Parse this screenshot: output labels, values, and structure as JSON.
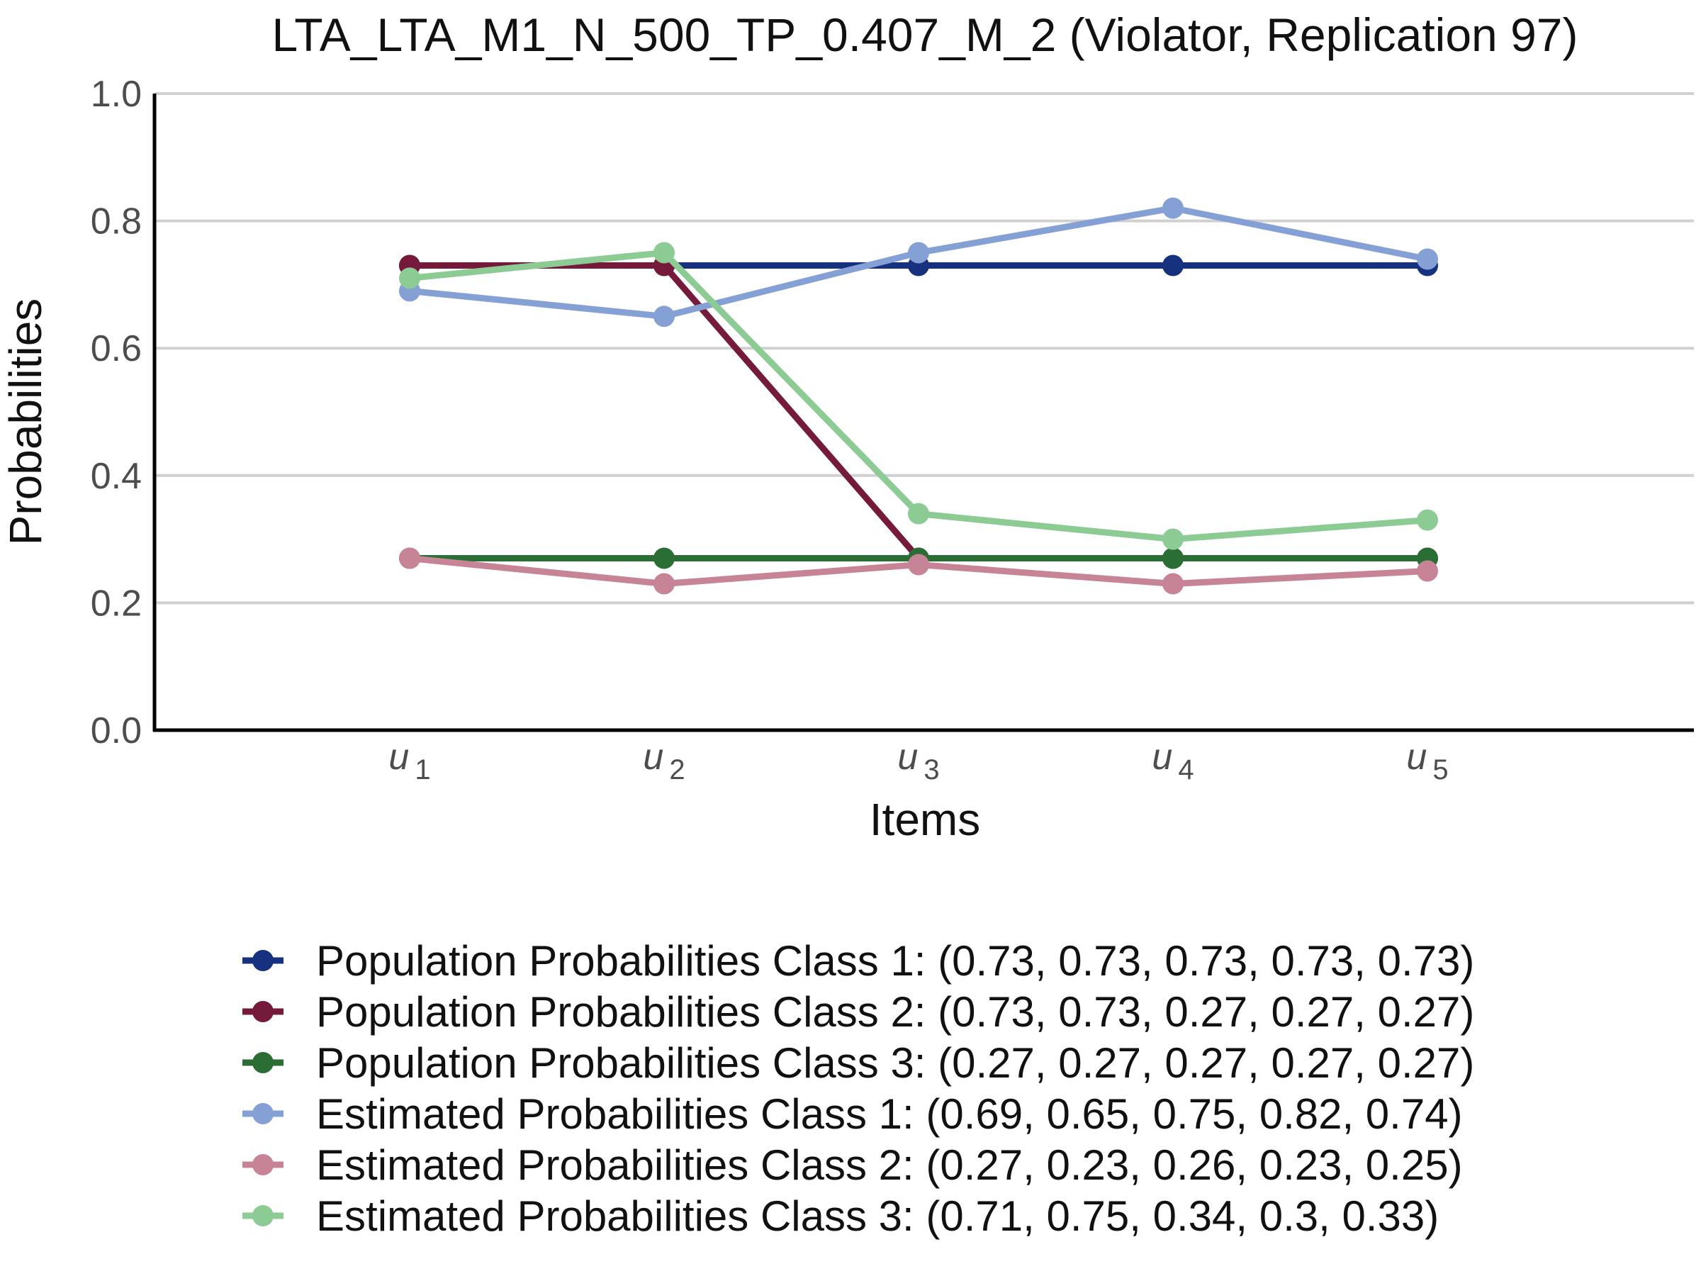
{
  "chart_data": {
    "type": "line",
    "title": "LTA_LTA_M1_N_500_TP_0.407_M_2 (Violator, Replication 97)",
    "xlabel": "Items",
    "ylabel": "Probabilities",
    "categories": [
      {
        "base": "u",
        "sub": "1"
      },
      {
        "base": "u",
        "sub": "2"
      },
      {
        "base": "u",
        "sub": "3"
      },
      {
        "base": "u",
        "sub": "4"
      },
      {
        "base": "u",
        "sub": "5"
      }
    ],
    "ylim": [
      0,
      1
    ],
    "yticks": [
      "0.0",
      "0.2",
      "0.4",
      "0.6",
      "0.8",
      "1.0"
    ],
    "grid": "horizontal",
    "legend_position": "bottom",
    "series": [
      {
        "name": "Population Probabilities Class 1: (0.73, 0.73, 0.73, 0.73, 0.73)",
        "color": "#16317d",
        "values": [
          0.73,
          0.73,
          0.73,
          0.73,
          0.73
        ]
      },
      {
        "name": "Population Probabilities Class 2: (0.73, 0.73, 0.27, 0.27, 0.27)",
        "color": "#751a3b",
        "values": [
          0.73,
          0.73,
          0.27,
          0.27,
          0.27
        ]
      },
      {
        "name": "Population Probabilities Class 3: (0.27, 0.27, 0.27, 0.27, 0.27)",
        "color": "#2a6e35",
        "values": [
          0.27,
          0.27,
          0.27,
          0.27,
          0.27
        ]
      },
      {
        "name": "Estimated Probabilities Class 1: (0.69, 0.65, 0.75, 0.82, 0.74)",
        "color": "#84a0d4",
        "values": [
          0.69,
          0.65,
          0.75,
          0.82,
          0.74
        ]
      },
      {
        "name": "Estimated Probabilities Class 2: (0.27, 0.23, 0.26, 0.23, 0.25)",
        "color": "#c78496",
        "values": [
          0.27,
          0.23,
          0.26,
          0.23,
          0.25
        ]
      },
      {
        "name": "Estimated Probabilities Class 3: (0.71, 0.75, 0.34, 0.3, 0.33)",
        "color": "#8ccb93",
        "values": [
          0.71,
          0.75,
          0.34,
          0.3,
          0.33
        ]
      }
    ]
  }
}
